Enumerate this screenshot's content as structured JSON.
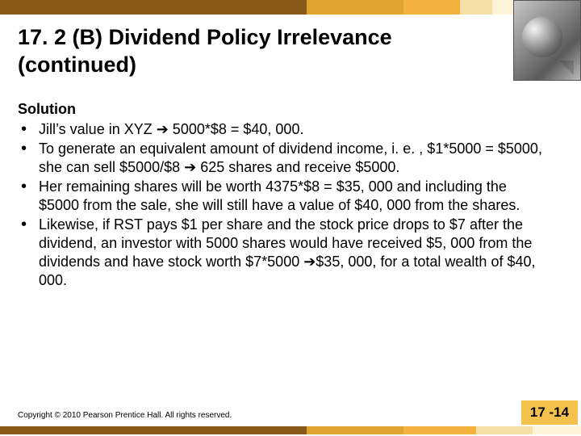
{
  "colors": {
    "band_dark_brown": "#8a5a1a",
    "band_gold": "#e0a52e",
    "band_orange": "#f4b13d",
    "band_pale": "#f7e0a8",
    "band_cream": "#fdf4d7",
    "pagebox_bg": "#f4c14d"
  },
  "title": "17. 2 (B)  Dividend Policy Irrelevance (continued)",
  "solution_label": "Solution",
  "bullets": [
    "Jill’s value in XYZ ➔ 5000*$8 = $40, 000.",
    "To generate an equivalent amount of dividend income, i. e. , $1*5000 = $5000, she can sell $5000/$8 ➔ 625 shares and receive $5000.",
    "Her remaining shares will be worth 4375*$8 = $35, 000 and including the $5000 from the sale, she will still have a value of $40, 000 from the shares.",
    "Likewise, if RST pays $1 per share and the stock price drops to $7 after the dividend, an investor with 5000 shares would have received $5, 000 from the dividends and have stock worth $7*5000 ➔$35, 000, for a total wealth of $40, 000."
  ],
  "copyright": "Copyright © 2010 Pearson Prentice Hall. All rights reserved.",
  "page_number": "17 -14"
}
